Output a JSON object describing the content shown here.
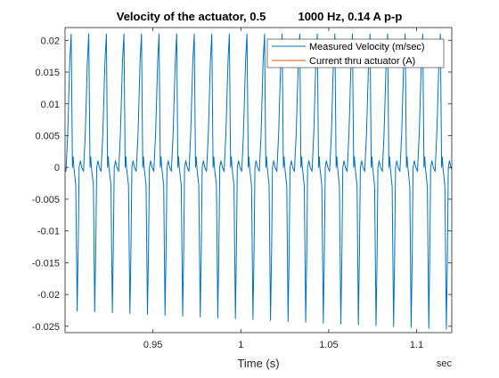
{
  "chart_data": {
    "type": "line",
    "title": "Velocity of the actuator, 0.5          1000 Hz, 0.14 A p-p",
    "xlabel": "Time (s)",
    "x_unit_label": "sec",
    "ylabel": "",
    "xlim": [
      0.9,
      1.12
    ],
    "ylim": [
      -0.026,
      0.022
    ],
    "x_ticks": [
      0.95,
      1.0,
      1.05,
      1.1
    ],
    "x_tick_labels": [
      "0.95",
      "1",
      "1.05",
      "1.1"
    ],
    "y_ticks": [
      0.02,
      0.015,
      0.01,
      0.005,
      0,
      -0.005,
      -0.01,
      -0.015,
      -0.02,
      -0.025
    ],
    "y_tick_labels": [
      "0.02",
      "0.015",
      "0.01",
      "0.005",
      "0",
      "-0.005",
      "-0.01",
      "-0.015",
      "-0.02",
      "-0.025"
    ],
    "grid": false,
    "legend_position": "top-right",
    "series": [
      {
        "name": "Measured Velocity (m/sec)",
        "color": "#0072BD",
        "period": 0.01,
        "peak_value": 0.021,
        "trough_value": -0.0225,
        "trough_value_late": -0.0255
      },
      {
        "name": "Current thru actuator (A)",
        "color": "#D95319"
      }
    ]
  }
}
